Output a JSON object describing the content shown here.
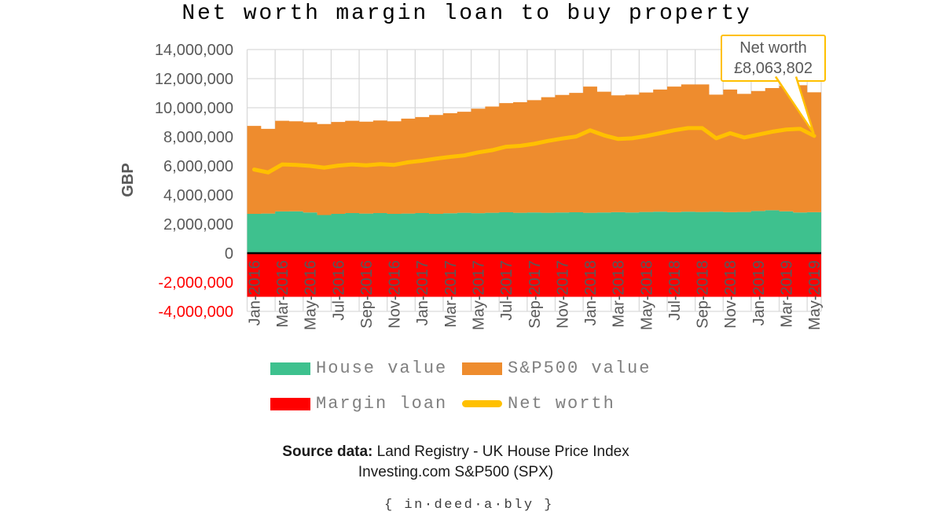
{
  "title": "Net worth margin loan to buy property",
  "axis": {
    "y_label": "GBP",
    "y_ticks": [
      {
        "label": "14,000,000",
        "value": 14000000
      },
      {
        "label": "12,000,000",
        "value": 12000000
      },
      {
        "label": "10,000,000",
        "value": 10000000
      },
      {
        "label": "8,000,000",
        "value": 8000000
      },
      {
        "label": "6,000,000",
        "value": 6000000
      },
      {
        "label": "4,000,000",
        "value": 4000000
      },
      {
        "label": "2,000,000",
        "value": 2000000
      },
      {
        "label": "0",
        "value": 0
      },
      {
        "label": "-2,000,000",
        "value": -2000000
      },
      {
        "label": "-4,000,000",
        "value": -4000000
      }
    ],
    "x_ticks": [
      "Jan-2016",
      "Mar-2016",
      "May-2016",
      "Jul-2016",
      "Sep-2016",
      "Nov-2016",
      "Jan-2017",
      "Mar-2017",
      "May-2017",
      "Jul-2017",
      "Sep-2017",
      "Nov-2017",
      "Jan-2018",
      "Mar-2018",
      "May-2018",
      "Jul-2018",
      "Sep-2018",
      "Nov-2018",
      "Jan-2019",
      "Mar-2019",
      "May-2019"
    ]
  },
  "annotation": {
    "title": "Net worth",
    "value": "£8,063,802"
  },
  "legend": [
    {
      "label": "House value",
      "color": "#3EC18E",
      "marker": "box"
    },
    {
      "label": "S&P500 value",
      "color": "#EE8C2E",
      "marker": "box"
    },
    {
      "label": "Margin loan",
      "color": "#FF0000",
      "marker": "box"
    },
    {
      "label": "Net worth",
      "color": "#FFC000",
      "marker": "line"
    }
  ],
  "source": {
    "prefix": "Source data:",
    "line1": " Land Registry - UK House Price Index",
    "line2": "Investing.com S&P500 (SPX)"
  },
  "footer": "{ in·deed·a·bly }",
  "colors": {
    "grid": "#D9D9D9",
    "axis_text": "#595959",
    "negative_tick_text": "#FF0000",
    "zero_line": "#000000",
    "legend_text": "#808080",
    "annotation_border": "#FFC000"
  },
  "chart_data": {
    "type": "area",
    "title": "Net worth margin loan to buy property",
    "xlabel": "",
    "ylabel": "GBP",
    "ylim": [
      -4000000,
      14000000
    ],
    "grid": true,
    "legend_position": "bottom",
    "x": [
      "Jan-2016",
      "Feb-2016",
      "Mar-2016",
      "Apr-2016",
      "May-2016",
      "Jun-2016",
      "Jul-2016",
      "Aug-2016",
      "Sep-2016",
      "Oct-2016",
      "Nov-2016",
      "Dec-2016",
      "Jan-2017",
      "Feb-2017",
      "Mar-2017",
      "Apr-2017",
      "May-2017",
      "Jun-2017",
      "Jul-2017",
      "Aug-2017",
      "Sep-2017",
      "Oct-2017",
      "Nov-2017",
      "Dec-2017",
      "Jan-2018",
      "Feb-2018",
      "Mar-2018",
      "Apr-2018",
      "May-2018",
      "Jun-2018",
      "Jul-2018",
      "Aug-2018",
      "Sep-2018",
      "Oct-2018",
      "Nov-2018",
      "Dec-2018",
      "Jan-2019",
      "Feb-2019",
      "Mar-2019",
      "Apr-2019",
      "May-2019"
    ],
    "series": [
      {
        "name": "House value",
        "type": "area",
        "interpolation": "step",
        "color": "#3EC18E",
        "stack": "positive",
        "values": [
          2700000,
          2720000,
          2870000,
          2880000,
          2800000,
          2620000,
          2700000,
          2760000,
          2720000,
          2760000,
          2700000,
          2720000,
          2760000,
          2700000,
          2740000,
          2780000,
          2750000,
          2780000,
          2810000,
          2780000,
          2800000,
          2780000,
          2800000,
          2810000,
          2780000,
          2800000,
          2820000,
          2800000,
          2830000,
          2850000,
          2820000,
          2850000,
          2830000,
          2850000,
          2820000,
          2830000,
          2900000,
          2950000,
          2880000,
          2800000,
          2820000
        ]
      },
      {
        "name": "S&P500 value",
        "type": "area",
        "interpolation": "step",
        "color": "#EE8C2E",
        "stack": "positive",
        "values": [
          6050000,
          5830000,
          6230000,
          6190000,
          6200000,
          6260000,
          6320000,
          6340000,
          6320000,
          6360000,
          6370000,
          6530000,
          6600000,
          6800000,
          6880000,
          6940000,
          7180000,
          7300000,
          7510000,
          7600000,
          7720000,
          7940000,
          8080000,
          8210000,
          8670000,
          8300000,
          8030000,
          8100000,
          8220000,
          8400000,
          8630000,
          8750000,
          8770000,
          8050000,
          8430000,
          8120000,
          8250000,
          8400000,
          8620000,
          8750000,
          8243802
        ]
      },
      {
        "name": "Margin loan",
        "type": "area",
        "interpolation": "step",
        "color": "#FF0000",
        "stack": "negative",
        "values": [
          -3000000,
          -3000000,
          -3000000,
          -3000000,
          -3000000,
          -3000000,
          -3000000,
          -3000000,
          -3000000,
          -3000000,
          -3000000,
          -3000000,
          -3000000,
          -3000000,
          -3000000,
          -3000000,
          -3000000,
          -3000000,
          -3000000,
          -3000000,
          -3000000,
          -3000000,
          -3000000,
          -3000000,
          -3000000,
          -3000000,
          -3000000,
          -3000000,
          -3000000,
          -3000000,
          -3000000,
          -3000000,
          -3000000,
          -3000000,
          -3000000,
          -3000000,
          -3000000,
          -3000000,
          -3000000,
          -3000000,
          -3000000
        ]
      },
      {
        "name": "Net worth",
        "type": "line",
        "color": "#FFC000",
        "line_width": 5,
        "values": [
          5750000,
          5550000,
          6100000,
          6070000,
          6000000,
          5880000,
          6020000,
          6100000,
          6040000,
          6120000,
          6070000,
          6250000,
          6360000,
          6500000,
          6620000,
          6720000,
          6930000,
          7080000,
          7320000,
          7380000,
          7520000,
          7720000,
          7880000,
          8020000,
          8450000,
          8100000,
          7850000,
          7900000,
          8050000,
          8250000,
          8450000,
          8600000,
          8600000,
          7900000,
          8250000,
          7950000,
          8150000,
          8350000,
          8500000,
          8550000,
          8063802
        ]
      }
    ],
    "annotation": {
      "label": "Net worth",
      "value": 8063802,
      "x": "May-2019"
    }
  }
}
